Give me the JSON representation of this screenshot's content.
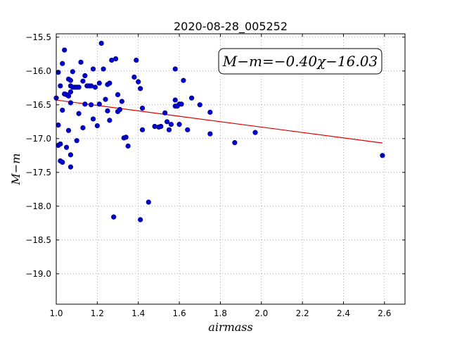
{
  "chart_data": {
    "type": "scatter",
    "title": "2020-08-28_005252",
    "xlabel": "airmass",
    "ylabel": "M−m",
    "xlim": [
      1.0,
      2.7
    ],
    "ylim": [
      -19.45,
      -15.45
    ],
    "y_inverted": true,
    "grid": true,
    "x_ticks": [
      1.0,
      1.2,
      1.4,
      1.6,
      1.8,
      2.0,
      2.2,
      2.4,
      2.6
    ],
    "x_tick_labels": [
      "1.0",
      "1.2",
      "1.4",
      "1.6",
      "1.8",
      "2.0",
      "2.2",
      "2.4",
      "2.6"
    ],
    "y_ticks": [
      -15.5,
      -16.0,
      -16.5,
      -17.0,
      -17.5,
      -18.0,
      -18.5,
      -19.0
    ],
    "y_tick_labels": [
      "−15.5",
      "−16.0",
      "−16.5",
      "−17.0",
      "−17.5",
      "−18.0",
      "−18.5",
      "−19.0"
    ],
    "annotation": "M−m=−0.40χ−16.03",
    "annotation_position": "top-right",
    "colors": {
      "points": "#0000cc",
      "points_edge": "#000080",
      "fit_line": "#dd0000",
      "grid": "#808080"
    },
    "fit_line": {
      "slope": -0.4,
      "intercept": -16.03,
      "x_range": [
        1.0,
        2.59
      ]
    },
    "series": [
      {
        "points": [
          [
            1.0,
            -16.4
          ],
          [
            1.01,
            -16.8
          ],
          [
            1.01,
            -17.1
          ],
          [
            1.01,
            -16.02
          ],
          [
            1.02,
            -16.22
          ],
          [
            1.02,
            -17.08
          ],
          [
            1.02,
            -17.33
          ],
          [
            1.03,
            -17.35
          ],
          [
            1.03,
            -16.58
          ],
          [
            1.03,
            -15.89
          ],
          [
            1.04,
            -15.69
          ],
          [
            1.04,
            -16.34
          ],
          [
            1.05,
            -16.35
          ],
          [
            1.05,
            -17.13
          ],
          [
            1.06,
            -16.12
          ],
          [
            1.06,
            -16.37
          ],
          [
            1.06,
            -16.88
          ],
          [
            1.07,
            -17.24
          ],
          [
            1.07,
            -17.42
          ],
          [
            1.07,
            -16.14
          ],
          [
            1.07,
            -16.22
          ],
          [
            1.07,
            -16.31
          ],
          [
            1.07,
            -16.47
          ],
          [
            1.08,
            -16.01
          ],
          [
            1.08,
            -16.24
          ],
          [
            1.09,
            -16.24
          ],
          [
            1.1,
            -16.24
          ],
          [
            1.1,
            -17.03
          ],
          [
            1.11,
            -16.24
          ],
          [
            1.11,
            -16.63
          ],
          [
            1.12,
            -15.87
          ],
          [
            1.13,
            -16.84
          ],
          [
            1.13,
            -16.15
          ],
          [
            1.14,
            -16.07
          ],
          [
            1.14,
            -16.49
          ],
          [
            1.15,
            -16.22
          ],
          [
            1.16,
            -16.22
          ],
          [
            1.17,
            -16.22
          ],
          [
            1.17,
            -16.5
          ],
          [
            1.18,
            -15.97
          ],
          [
            1.18,
            -16.71
          ],
          [
            1.19,
            -16.24
          ],
          [
            1.2,
            -16.81
          ],
          [
            1.21,
            -16.49
          ],
          [
            1.21,
            -16.18
          ],
          [
            1.22,
            -15.59
          ],
          [
            1.23,
            -15.97
          ],
          [
            1.24,
            -16.42
          ],
          [
            1.25,
            -16.59
          ],
          [
            1.25,
            -16.2
          ],
          [
            1.26,
            -16.18
          ],
          [
            1.26,
            -16.73
          ],
          [
            1.27,
            -15.84
          ],
          [
            1.28,
            -18.16
          ],
          [
            1.29,
            -15.82
          ],
          [
            1.3,
            -16.35
          ],
          [
            1.3,
            -16.6
          ],
          [
            1.31,
            -16.57
          ],
          [
            1.32,
            -16.45
          ],
          [
            1.33,
            -16.99
          ],
          [
            1.34,
            -16.98
          ],
          [
            1.35,
            -17.11
          ],
          [
            1.38,
            -16.09
          ],
          [
            1.39,
            -15.84
          ],
          [
            1.4,
            -16.16
          ],
          [
            1.41,
            -16.26
          ],
          [
            1.41,
            -18.2
          ],
          [
            1.42,
            -16.87
          ],
          [
            1.42,
            -16.55
          ],
          [
            1.45,
            -17.94
          ],
          [
            1.48,
            -16.82
          ],
          [
            1.5,
            -16.83
          ],
          [
            1.51,
            -16.82
          ],
          [
            1.53,
            -16.62
          ],
          [
            1.54,
            -16.75
          ],
          [
            1.55,
            -16.87
          ],
          [
            1.56,
            -16.79
          ],
          [
            1.58,
            -16.43
          ],
          [
            1.58,
            -16.52
          ],
          [
            1.58,
            -15.97
          ],
          [
            1.59,
            -16.52
          ],
          [
            1.6,
            -16.49
          ],
          [
            1.61,
            -16.49
          ],
          [
            1.6,
            -16.79
          ],
          [
            1.62,
            -16.14
          ],
          [
            1.64,
            -16.87
          ],
          [
            1.66,
            -16.4
          ],
          [
            1.7,
            -16.5
          ],
          [
            1.75,
            -16.61
          ],
          [
            1.75,
            -16.93
          ],
          [
            1.87,
            -17.06
          ],
          [
            1.97,
            -16.91
          ],
          [
            2.59,
            -17.25
          ]
        ]
      }
    ]
  }
}
